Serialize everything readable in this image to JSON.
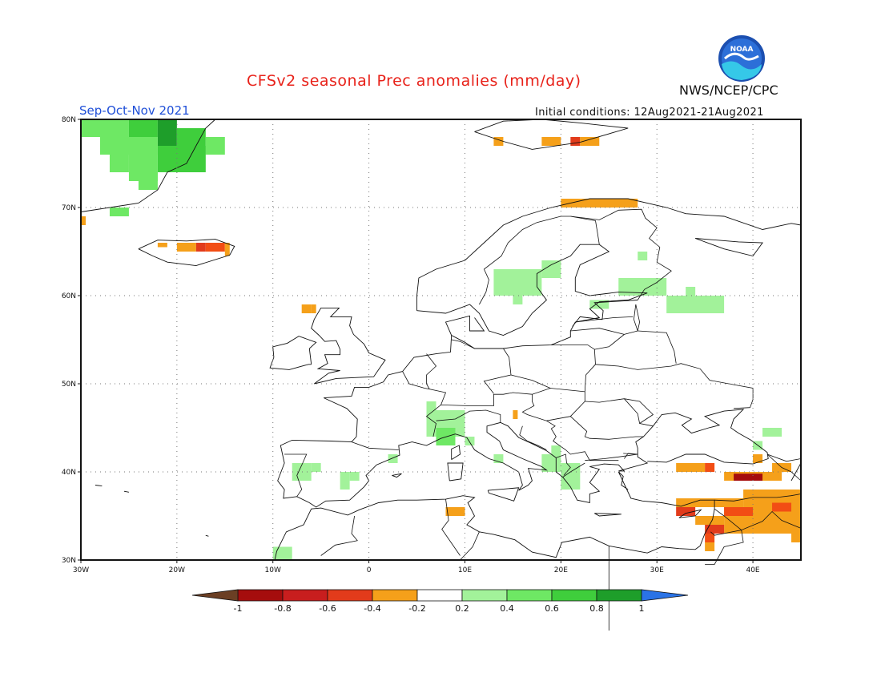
{
  "header": {
    "title": "CFSv2 seasonal Prec anomalies (mm/day)",
    "period": "Sep-Oct-Nov 2021",
    "initial_conditions": "Initial conditions: 12Aug2021-21Aug2021",
    "organization": "NWS/NCEP/CPC",
    "logo_text": "NOAA"
  },
  "map": {
    "lon_range": [
      -30,
      45
    ],
    "lat_range": [
      30,
      80
    ],
    "lon_ticks": [
      {
        "value": -30,
        "label": "30W"
      },
      {
        "value": -20,
        "label": "20W"
      },
      {
        "value": -10,
        "label": "10W"
      },
      {
        "value": 0,
        "label": "0"
      },
      {
        "value": 10,
        "label": "10E"
      },
      {
        "value": 20,
        "label": "20E"
      },
      {
        "value": 30,
        "label": "30E"
      },
      {
        "value": 40,
        "label": "40E"
      }
    ],
    "lat_ticks": [
      {
        "value": 80,
        "label": "80N"
      },
      {
        "value": 70,
        "label": "70N"
      },
      {
        "value": 60,
        "label": "60N"
      },
      {
        "value": 50,
        "label": "50N"
      },
      {
        "value": 40,
        "label": "40N"
      },
      {
        "value": 30,
        "label": "30N"
      }
    ],
    "grid_lines": "dotted",
    "anomaly_cells_note": "each cell [lon_west, lat_south, lon_east, lat_north, color_class]",
    "anomaly_cells": [
      [
        -30,
        78,
        -25,
        80,
        "g2"
      ],
      [
        -25,
        78,
        -22,
        80,
        "g3"
      ],
      [
        -22,
        77,
        -20,
        80,
        "g4"
      ],
      [
        -20,
        76,
        -17,
        79,
        "g3"
      ],
      [
        -28,
        76,
        -22,
        78,
        "g2"
      ],
      [
        -22,
        74,
        -17,
        77,
        "g3"
      ],
      [
        -27,
        74,
        -25,
        76,
        "g2"
      ],
      [
        -25,
        73,
        -22,
        76,
        "g2"
      ],
      [
        -24,
        72,
        -22,
        74,
        "g2"
      ],
      [
        -27,
        69,
        -25,
        70,
        "g2"
      ],
      [
        -17,
        76,
        -15,
        78,
        "g2"
      ],
      [
        -22,
        65.5,
        -21,
        66,
        "o1"
      ],
      [
        -20,
        65,
        -18,
        66,
        "o1"
      ],
      [
        -18,
        65,
        -17,
        66,
        "r3"
      ],
      [
        -17,
        65,
        -15,
        66,
        "r4"
      ],
      [
        -15,
        64.5,
        -14.5,
        66,
        "o1"
      ],
      [
        -30,
        68,
        -29.5,
        69,
        "o1"
      ],
      [
        -7,
        58,
        -6,
        59,
        "o1"
      ],
      [
        -6,
        58,
        -5.5,
        59,
        "o1"
      ],
      [
        18,
        77,
        20,
        78,
        "o1"
      ],
      [
        21,
        77,
        22,
        78,
        "r3"
      ],
      [
        22,
        77,
        24,
        78,
        "o1"
      ],
      [
        13,
        77,
        14,
        78,
        "o1"
      ],
      [
        20,
        70,
        28,
        71,
        "o1"
      ],
      [
        13,
        60,
        18,
        63,
        "g1"
      ],
      [
        18,
        62,
        20,
        64,
        "g1"
      ],
      [
        15,
        59,
        16,
        60,
        "g1"
      ],
      [
        26,
        60,
        31,
        62,
        "g1"
      ],
      [
        28,
        64,
        29,
        65,
        "g1"
      ],
      [
        23,
        58.5,
        25,
        59.5,
        "g1"
      ],
      [
        31,
        58,
        37,
        60,
        "g1"
      ],
      [
        33,
        60,
        34,
        61,
        "g1"
      ],
      [
        6,
        44,
        10,
        47,
        "g1"
      ],
      [
        7,
        43,
        9,
        45,
        "g2"
      ],
      [
        6,
        47,
        7,
        48,
        "g1"
      ],
      [
        10,
        43,
        11,
        44,
        "g1"
      ],
      [
        15,
        46,
        15.5,
        47,
        "o1"
      ],
      [
        -8,
        39,
        -6,
        41,
        "g1"
      ],
      [
        -6,
        40,
        -5,
        41,
        "g1"
      ],
      [
        -3,
        38,
        -2,
        40,
        "g1"
      ],
      [
        -2,
        39,
        -1,
        40,
        "g1"
      ],
      [
        2,
        41,
        3,
        42,
        "g1"
      ],
      [
        13,
        41,
        14,
        42,
        "g1"
      ],
      [
        18,
        40,
        20,
        42,
        "g1"
      ],
      [
        20,
        38,
        22,
        41,
        "g1"
      ],
      [
        19,
        42,
        20,
        43,
        "g1"
      ],
      [
        8,
        35,
        10,
        36,
        "o1"
      ],
      [
        -10,
        30,
        -8,
        31.5,
        "g1"
      ],
      [
        41,
        44,
        43,
        45,
        "g1"
      ],
      [
        40,
        42.5,
        41,
        43.5,
        "g1"
      ],
      [
        32,
        40,
        35,
        41,
        "o1"
      ],
      [
        35,
        40,
        36,
        41,
        "r4"
      ],
      [
        37,
        39,
        43,
        40,
        "o1"
      ],
      [
        38,
        39,
        41,
        39.8,
        "r1"
      ],
      [
        42,
        40,
        44,
        41,
        "o1"
      ],
      [
        40,
        41,
        41,
        42,
        "o1"
      ],
      [
        32,
        36,
        39,
        37,
        "o1"
      ],
      [
        39,
        36,
        45,
        38,
        "o1"
      ],
      [
        32,
        35,
        34,
        36,
        "r3"
      ],
      [
        34,
        34,
        37,
        35,
        "o1"
      ],
      [
        37,
        33,
        45,
        36,
        "o1"
      ],
      [
        37,
        35,
        40,
        36,
        "r4"
      ],
      [
        42,
        35.5,
        44,
        36.5,
        "r4"
      ],
      [
        44,
        32,
        45,
        33,
        "o1"
      ],
      [
        35,
        32,
        36,
        33,
        "r4"
      ],
      [
        35,
        31,
        36,
        32,
        "o1"
      ],
      [
        35,
        33,
        37,
        34,
        "r3"
      ]
    ]
  },
  "colorbar": {
    "labels": [
      "-1",
      "-0.8",
      "-0.6",
      "-0.4",
      "-0.2",
      "0.2",
      "0.4",
      "0.6",
      "0.8",
      "1"
    ],
    "colors": {
      "below": "#6b3f24",
      "r1": "#a50d0d",
      "r2": "#c81e1e",
      "r3": "#e23b1b",
      "r4": "#f24d14",
      "o1": "#f5a01a",
      "white": "#ffffff",
      "g1": "#a2f29a",
      "g2": "#6ee864",
      "g3": "#3fce3c",
      "g4": "#1e9e2a",
      "above": "#2a73e6"
    },
    "order": [
      "r1",
      "r2",
      "r3",
      "o1",
      "white",
      "g1",
      "g2",
      "g3",
      "g4"
    ]
  }
}
